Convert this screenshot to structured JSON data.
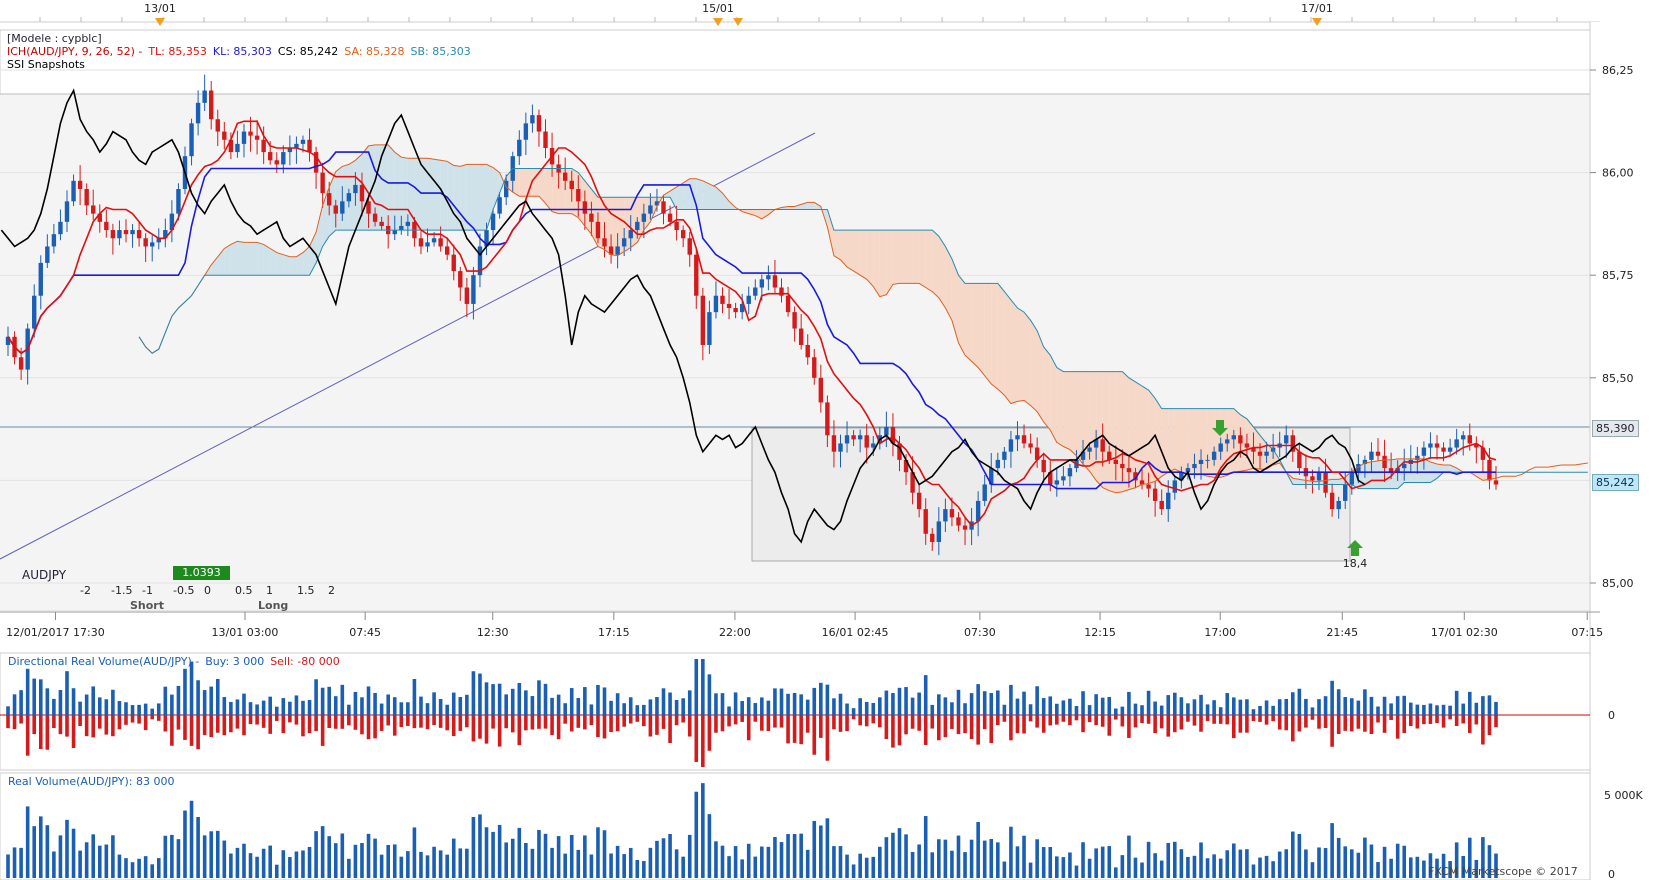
{
  "header": {
    "date_markers": [
      "13/01",
      "15/01",
      "17/01"
    ]
  },
  "legend": {
    "model": "[Modele : cypblc]",
    "ich_label": "ICH(AUD/JPY, 9, 26, 52) -",
    "tl": "TL: 85,353",
    "kl": "KL: 85,303",
    "cs": "CS: 85,242",
    "sa": "SA: 85,328",
    "sb": "SB: 85,303",
    "ssi": "SSI Snapshots"
  },
  "ssi": {
    "symbol": "AUDJPY",
    "value": "1.0393",
    "ticks": [
      "-2",
      "-1.5",
      "-1",
      "-0.5",
      "0",
      "0.5",
      "1",
      "1.5",
      "2"
    ],
    "short_label": "Short",
    "long_label": "Long"
  },
  "price_tags": {
    "upper": "85,390",
    "current": "85,242"
  },
  "annotation": "18,4",
  "volume_panels": {
    "directional_title": "Directional Real Volume(AUD/JPY) -",
    "buy": "Buy: 3 000",
    "sell": "Sell: -80 000",
    "real_title": "Real Volume(AUD/JPY): 83 000",
    "dir_axis": [
      "0"
    ],
    "real_axis": [
      "5 000K",
      "0"
    ]
  },
  "footer": {
    "watermark": "FXCM Marketscope © 2017"
  },
  "colors": {
    "bull": "#1a5fb4",
    "bear": "#d41a1a",
    "tenkan": "#e01010",
    "kijun": "#1a1ae0",
    "chikou": "#000000",
    "senkou_a": "#e06020",
    "senkou_b": "#2a8ab0",
    "cloud_bull": "#cfe2ea",
    "cloud_bear": "#f6d8c8",
    "ssi_green": "#1e8a1e",
    "tag_blue": "#bfe6f5"
  },
  "chart_data": [
    {
      "type": "candlestick",
      "title": "",
      "x_tick_labels": [
        "12/01/2017 17:30",
        "13/01 03:00",
        "07:45",
        "12:30",
        "17:15",
        "22:00",
        "16/01 02:45",
        "07:30",
        "12:15",
        "17:00",
        "21:45",
        "17/01 02:30",
        "07:15"
      ],
      "y_tick_labels": [
        "86,25",
        "86,00",
        "85,75",
        "85,50",
        "85,00"
      ],
      "ylim": [
        84.98,
        86.34
      ],
      "indicators": [
        "Tenkan (TL)",
        "Kijun (KL)",
        "Chikou (CS)",
        "Senkou A (SA)",
        "Senkou B (SB)",
        "Cloud"
      ],
      "last": {
        "TL": 85.353,
        "KL": 85.303,
        "CS": 85.242,
        "SA": 85.328,
        "SB": 85.303
      },
      "closes": [
        85.6,
        85.55,
        85.52,
        85.62,
        85.7,
        85.78,
        85.82,
        85.85,
        85.88,
        85.93,
        85.98,
        85.96,
        85.92,
        85.9,
        85.88,
        85.86,
        85.84,
        85.86,
        85.85,
        85.86,
        85.84,
        85.82,
        85.83,
        85.84,
        85.86,
        85.9,
        85.96,
        86.04,
        86.12,
        86.17,
        86.2,
        86.13,
        86.1,
        86.08,
        86.05,
        86.07,
        86.1,
        86.09,
        86.08,
        86.05,
        86.03,
        86.02,
        86.05,
        86.06,
        86.07,
        86.08,
        86.05,
        86.0,
        85.95,
        85.92,
        85.9,
        85.93,
        85.95,
        85.97,
        85.93,
        85.9,
        85.88,
        85.87,
        85.85,
        85.86,
        85.87,
        85.88,
        85.84,
        85.82,
        85.83,
        85.84,
        85.82,
        85.8,
        85.76,
        85.72,
        85.68,
        85.75,
        85.82,
        85.86,
        85.9,
        85.94,
        85.98,
        86.04,
        86.08,
        86.12,
        86.14,
        86.1,
        86.06,
        86.02,
        86.0,
        85.98,
        85.96,
        85.93,
        85.9,
        85.88,
        85.84,
        85.82,
        85.8,
        85.82,
        85.84,
        85.86,
        85.88,
        85.9,
        85.92,
        85.93,
        85.9,
        85.88,
        85.86,
        85.84,
        85.8,
        85.7,
        85.58,
        85.66,
        85.7,
        85.68,
        85.67,
        85.66,
        85.68,
        85.7,
        85.72,
        85.74,
        85.75,
        85.72,
        85.7,
        85.66,
        85.62,
        85.58,
        85.55,
        85.5,
        85.44,
        85.36,
        85.32,
        85.34,
        85.36,
        85.35,
        85.36,
        85.33,
        85.34,
        85.36,
        85.38,
        85.34,
        85.3,
        85.27,
        85.22,
        85.18,
        85.12,
        85.1,
        85.15,
        85.18,
        85.16,
        85.14,
        85.13,
        85.15,
        85.2,
        85.24,
        85.28,
        85.3,
        85.32,
        85.35,
        85.36,
        85.34,
        85.33,
        85.3,
        85.27,
        85.24,
        85.25,
        85.26,
        85.28,
        85.3,
        85.32,
        85.33,
        85.35,
        85.32,
        85.3,
        85.29,
        85.28,
        85.27,
        85.25,
        85.24,
        85.23,
        85.2,
        85.18,
        85.22,
        85.25,
        85.27,
        85.28,
        85.29,
        85.3,
        85.3,
        85.32,
        85.34,
        85.35,
        85.36,
        85.34,
        85.33,
        85.32,
        85.31,
        85.32,
        85.33,
        85.34,
        85.36,
        85.32,
        85.28,
        85.26,
        85.25,
        85.27,
        85.22,
        85.18,
        85.2,
        85.24,
        85.27,
        85.29,
        85.3,
        85.32,
        85.31,
        85.28,
        85.27,
        85.28,
        85.29,
        85.3,
        85.31,
        85.33,
        85.34,
        85.33,
        85.32,
        85.33,
        85.35,
        85.36,
        85.34,
        85.33,
        85.3,
        85.25,
        85.24
      ]
    },
    {
      "type": "bar",
      "title": "Directional Real Volume(AUD/JPY)",
      "series": [
        {
          "name": "Buy",
          "values": [
            3000
          ]
        },
        {
          "name": "Sell",
          "values": [
            -80000
          ]
        }
      ]
    },
    {
      "type": "bar",
      "title": "Real Volume(AUD/JPY)",
      "series": [
        {
          "name": "Real Volume",
          "values": [
            83000
          ]
        }
      ],
      "y_tick_labels": [
        "5 000K",
        "0"
      ]
    }
  ]
}
